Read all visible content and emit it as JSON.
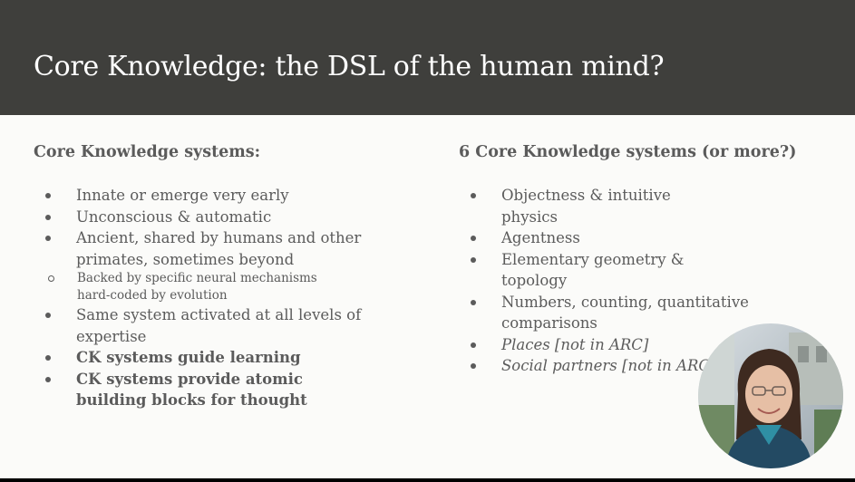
{
  "slide": {
    "title": "Core Knowledge: the DSL of the human mind?",
    "left": {
      "heading": "Core Knowledge systems:",
      "items": [
        {
          "text": "Innate or emerge very early"
        },
        {
          "text": "Unconscious & automatic"
        },
        {
          "text": "Ancient, shared by humans and other primates, sometimes beyond"
        },
        {
          "text": "Backed by specific neural mechanisms hard-coded by evolution"
        },
        {
          "text": "Same system activated at all levels of expertise"
        },
        {
          "text": "CK systems guide learning"
        },
        {
          "text": "CK systems provide atomic building blocks for thought"
        }
      ]
    },
    "right": {
      "heading": "6 Core Knowledge systems (or more?)",
      "items": [
        {
          "text": "Objectness & intuitive physics"
        },
        {
          "text": "Agentness"
        },
        {
          "text": "Elementary geometry & topology"
        },
        {
          "text": "Numbers, counting, quantitative comparisons"
        },
        {
          "text": "Places [not in ARC]"
        },
        {
          "text": "Social partners [not in ARC]"
        }
      ]
    }
  },
  "colors": {
    "header_bg": "#3f3f3c",
    "slide_bg": "#fbfbf9",
    "text": "#5b5b5b"
  },
  "icons": [
    "bullet-dot-icon",
    "bullet-ring-icon",
    "speaker-photo"
  ]
}
